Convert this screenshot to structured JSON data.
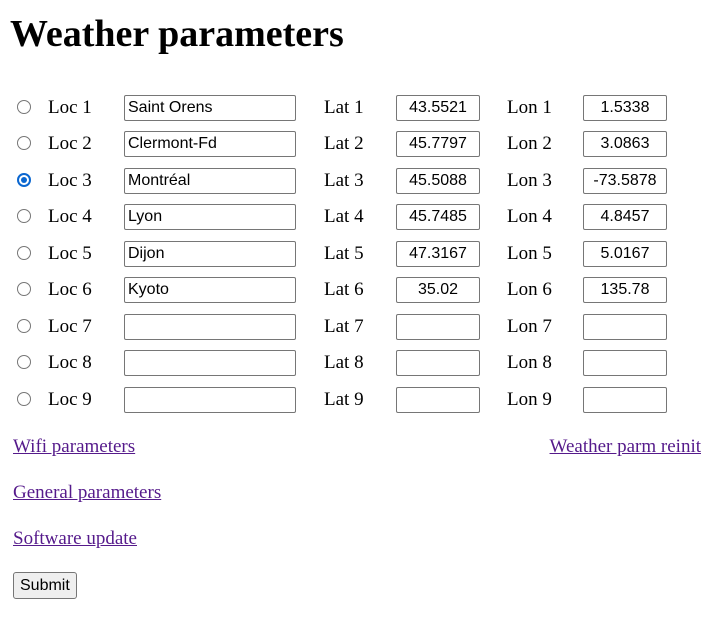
{
  "page": {
    "title": "Weather parameters"
  },
  "locations": [
    {
      "loc_label": "Loc 1",
      "name": "Saint Orens",
      "lat_label": "Lat 1",
      "lat": "43.5521",
      "lon_label": "Lon 1",
      "lon": "1.5338",
      "selected": false
    },
    {
      "loc_label": "Loc 2",
      "name": "Clermont-Fd",
      "lat_label": "Lat 2",
      "lat": "45.7797",
      "lon_label": "Lon 2",
      "lon": "3.0863",
      "selected": false
    },
    {
      "loc_label": "Loc 3",
      "name": "Montréal",
      "lat_label": "Lat 3",
      "lat": "45.5088",
      "lon_label": "Lon 3",
      "lon": "-73.5878",
      "selected": true
    },
    {
      "loc_label": "Loc 4",
      "name": "Lyon",
      "lat_label": "Lat 4",
      "lat": "45.7485",
      "lon_label": "Lon 4",
      "lon": "4.8457",
      "selected": false
    },
    {
      "loc_label": "Loc 5",
      "name": "Dijon",
      "lat_label": "Lat 5",
      "lat": "47.3167",
      "lon_label": "Lon 5",
      "lon": "5.0167",
      "selected": false
    },
    {
      "loc_label": "Loc 6",
      "name": "Kyoto",
      "lat_label": "Lat 6",
      "lat": "35.02",
      "lon_label": "Lon 6",
      "lon": "135.78",
      "selected": false
    },
    {
      "loc_label": "Loc 7",
      "name": "",
      "lat_label": "Lat 7",
      "lat": "",
      "lon_label": "Lon 7",
      "lon": "",
      "selected": false
    },
    {
      "loc_label": "Loc 8",
      "name": "",
      "lat_label": "Lat 8",
      "lat": "",
      "lon_label": "Lon 8",
      "lon": "",
      "selected": false
    },
    {
      "loc_label": "Loc 9",
      "name": "",
      "lat_label": "Lat 9",
      "lat": "",
      "lon_label": "Lon 9",
      "lon": "",
      "selected": false
    }
  ],
  "links": {
    "wifi": "Wifi parameters",
    "weather_reinit": "Weather parm reinit",
    "general": "General parameters",
    "software_update": "Software update"
  },
  "submit_label": "Submit",
  "colors": {
    "link": "#551a8b",
    "radio_selected": "#0b67d0"
  }
}
